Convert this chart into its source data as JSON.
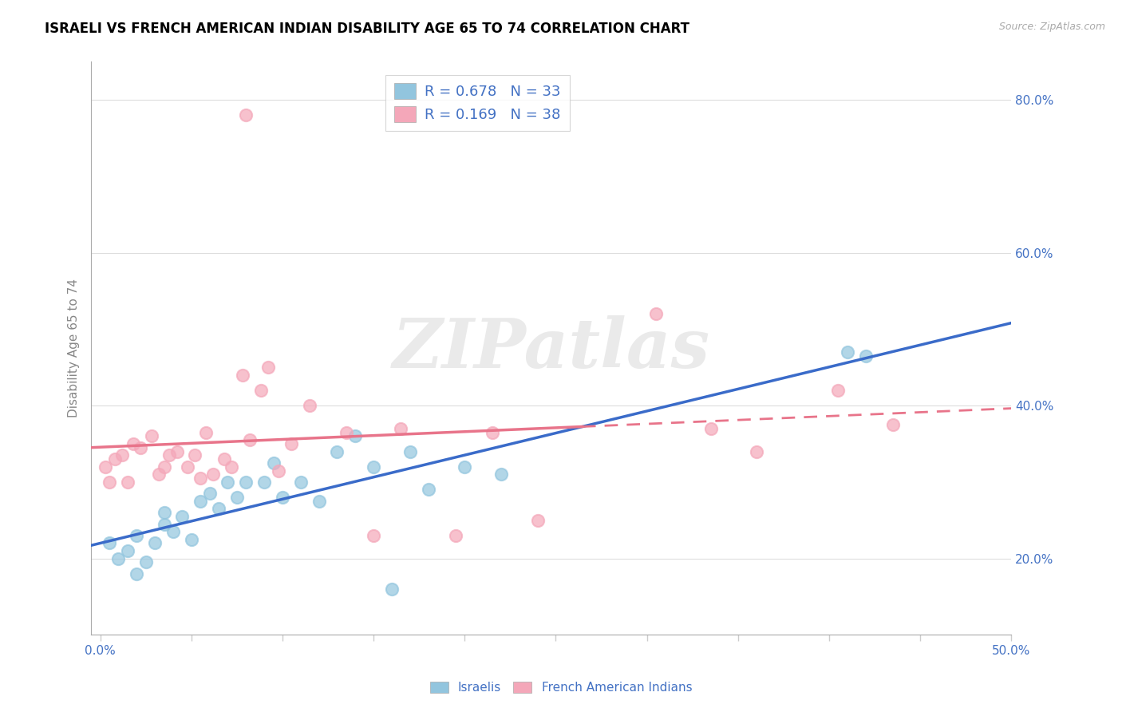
{
  "title": "ISRAELI VS FRENCH AMERICAN INDIAN DISABILITY AGE 65 TO 74 CORRELATION CHART",
  "source": "Source: ZipAtlas.com",
  "legend_label1": "Israelis",
  "legend_label2": "French American Indians",
  "r1": "0.678",
  "n1": "33",
  "r2": "0.169",
  "n2": "38",
  "color_blue": "#92C5DE",
  "color_pink": "#F4A7B9",
  "color_blue_line": "#3A6BC9",
  "color_pink_line": "#E8748A",
  "color_blue_text": "#4472C4",
  "israelis_x": [
    0.5,
    1.0,
    1.5,
    2.0,
    2.5,
    3.0,
    3.5,
    4.0,
    4.5,
    5.0,
    5.5,
    6.0,
    6.5,
    7.0,
    7.5,
    8.0,
    9.0,
    9.5,
    10.0,
    11.0,
    12.0,
    13.0,
    14.0,
    15.0,
    16.0,
    17.0,
    18.0,
    20.0,
    22.0,
    41.0,
    42.0,
    2.0,
    3.5
  ],
  "israelis_y": [
    22.0,
    20.0,
    21.0,
    23.0,
    19.5,
    22.0,
    24.5,
    23.5,
    25.5,
    22.5,
    27.5,
    28.5,
    26.5,
    30.0,
    28.0,
    30.0,
    30.0,
    32.5,
    28.0,
    30.0,
    27.5,
    34.0,
    36.0,
    32.0,
    16.0,
    34.0,
    29.0,
    32.0,
    31.0,
    47.0,
    46.5,
    18.0,
    26.0
  ],
  "french_x": [
    0.3,
    0.8,
    1.2,
    1.8,
    2.2,
    2.8,
    3.2,
    3.8,
    4.2,
    4.8,
    5.2,
    5.8,
    6.2,
    6.8,
    7.2,
    7.8,
    8.2,
    8.8,
    9.2,
    9.8,
    10.5,
    11.5,
    13.5,
    16.5,
    19.5,
    21.5,
    24.0,
    30.5,
    33.5,
    36.0,
    40.5,
    43.5,
    0.5,
    1.5,
    3.5,
    5.5,
    8.0,
    15.0
  ],
  "french_y": [
    32.0,
    33.0,
    33.5,
    35.0,
    34.5,
    36.0,
    31.0,
    33.5,
    34.0,
    32.0,
    33.5,
    36.5,
    31.0,
    33.0,
    32.0,
    44.0,
    35.5,
    42.0,
    45.0,
    31.5,
    35.0,
    40.0,
    36.5,
    37.0,
    23.0,
    36.5,
    25.0,
    52.0,
    37.0,
    34.0,
    42.0,
    37.5,
    30.0,
    30.0,
    32.0,
    30.5,
    78.0,
    23.0
  ],
  "xlim": [
    -0.5,
    50.0
  ],
  "ylim": [
    10.0,
    85.0
  ],
  "y_tick_vals": [
    20,
    40,
    60,
    80
  ],
  "x_tick_positions": [
    0,
    5,
    10,
    15,
    20,
    25,
    30,
    35,
    40,
    45,
    50
  ],
  "watermark": "ZIPatlas",
  "background_color": "#FFFFFF"
}
